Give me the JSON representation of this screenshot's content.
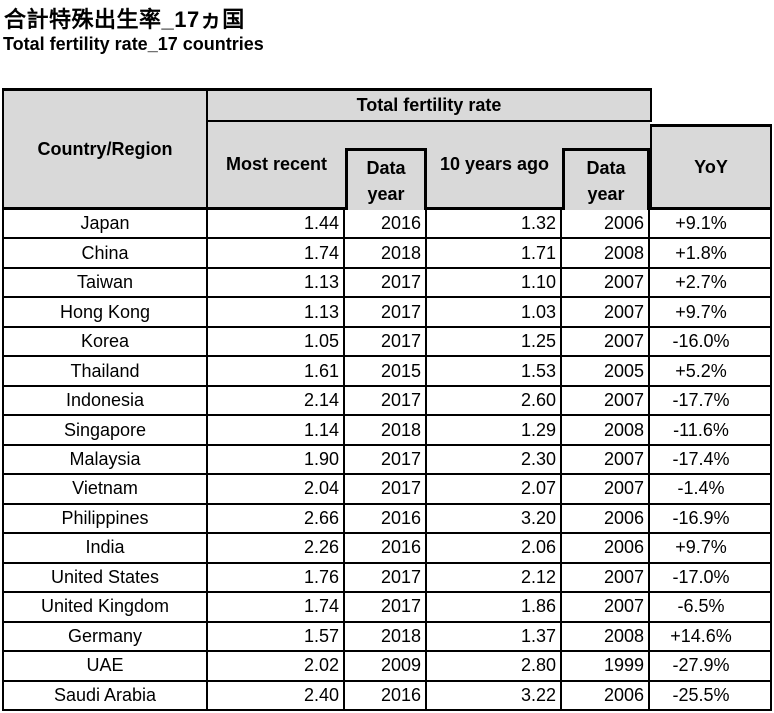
{
  "titles": {
    "japanese": "合計特殊出生率_17ヵ国",
    "english": "Total fertility rate_17 countries"
  },
  "table": {
    "header": {
      "country_region": "Country/Region",
      "group": "Total fertility rate",
      "most_recent": "Most recent",
      "data_year_l1": "Data",
      "data_year_l2": "year",
      "ten_years_ago": "10 years ago",
      "yoy": "YoY"
    },
    "rows": [
      {
        "country": "Japan",
        "most_recent": "1.44",
        "year1": "2016",
        "ten_years_ago": "1.32",
        "year2": "2006",
        "yoy": "+9.1%"
      },
      {
        "country": "China",
        "most_recent": "1.74",
        "year1": "2018",
        "ten_years_ago": "1.71",
        "year2": "2008",
        "yoy": "+1.8%"
      },
      {
        "country": "Taiwan",
        "most_recent": "1.13",
        "year1": "2017",
        "ten_years_ago": "1.10",
        "year2": "2007",
        "yoy": "+2.7%"
      },
      {
        "country": "Hong Kong",
        "most_recent": "1.13",
        "year1": "2017",
        "ten_years_ago": "1.03",
        "year2": "2007",
        "yoy": "+9.7%"
      },
      {
        "country": "Korea",
        "most_recent": "1.05",
        "year1": "2017",
        "ten_years_ago": "1.25",
        "year2": "2007",
        "yoy": "-16.0%"
      },
      {
        "country": "Thailand",
        "most_recent": "1.61",
        "year1": "2015",
        "ten_years_ago": "1.53",
        "year2": "2005",
        "yoy": "+5.2%"
      },
      {
        "country": "Indonesia",
        "most_recent": "2.14",
        "year1": "2017",
        "ten_years_ago": "2.60",
        "year2": "2007",
        "yoy": "-17.7%"
      },
      {
        "country": "Singapore",
        "most_recent": "1.14",
        "year1": "2018",
        "ten_years_ago": "1.29",
        "year2": "2008",
        "yoy": "-11.6%"
      },
      {
        "country": "Malaysia",
        "most_recent": "1.90",
        "year1": "2017",
        "ten_years_ago": "2.30",
        "year2": "2007",
        "yoy": "-17.4%"
      },
      {
        "country": "Vietnam",
        "most_recent": "2.04",
        "year1": "2017",
        "ten_years_ago": "2.07",
        "year2": "2007",
        "yoy": "-1.4%"
      },
      {
        "country": "Philippines",
        "most_recent": "2.66",
        "year1": "2016",
        "ten_years_ago": "3.20",
        "year2": "2006",
        "yoy": "-16.9%"
      },
      {
        "country": "India",
        "most_recent": "2.26",
        "year1": "2016",
        "ten_years_ago": "2.06",
        "year2": "2006",
        "yoy": "+9.7%"
      },
      {
        "country": "United States",
        "most_recent": "1.76",
        "year1": "2017",
        "ten_years_ago": "2.12",
        "year2": "2007",
        "yoy": "-17.0%"
      },
      {
        "country": "United Kingdom",
        "most_recent": "1.74",
        "year1": "2017",
        "ten_years_ago": "1.86",
        "year2": "2007",
        "yoy": "-6.5%"
      },
      {
        "country": "Germany",
        "most_recent": "1.57",
        "year1": "2018",
        "ten_years_ago": "1.37",
        "year2": "2008",
        "yoy": "+14.6%"
      },
      {
        "country": "UAE",
        "most_recent": "2.02",
        "year1": "2009",
        "ten_years_ago": "2.80",
        "year2": "1999",
        "yoy": "-27.9%"
      },
      {
        "country": "Saudi Arabia",
        "most_recent": "2.40",
        "year1": "2016",
        "ten_years_ago": "3.22",
        "year2": "2006",
        "yoy": "-25.5%"
      }
    ]
  },
  "chart_data": {
    "type": "table",
    "title": "Total fertility rate_17 countries",
    "title_ja": "合計特殊出生率_17ヵ国",
    "columns": [
      "Country/Region",
      "Total fertility rate: Most recent",
      "Data year",
      "Total fertility rate: 10 years ago",
      "Data year",
      "YoY"
    ],
    "rows": [
      [
        "Japan",
        1.44,
        2016,
        1.32,
        2006,
        "+9.1%"
      ],
      [
        "China",
        1.74,
        2018,
        1.71,
        2008,
        "+1.8%"
      ],
      [
        "Taiwan",
        1.13,
        2017,
        1.1,
        2007,
        "+2.7%"
      ],
      [
        "Hong Kong",
        1.13,
        2017,
        1.03,
        2007,
        "+9.7%"
      ],
      [
        "Korea",
        1.05,
        2017,
        1.25,
        2007,
        "-16.0%"
      ],
      [
        "Thailand",
        1.61,
        2015,
        1.53,
        2005,
        "+5.2%"
      ],
      [
        "Indonesia",
        2.14,
        2017,
        2.6,
        2007,
        "-17.7%"
      ],
      [
        "Singapore",
        1.14,
        2018,
        1.29,
        2008,
        "-11.6%"
      ],
      [
        "Malaysia",
        1.9,
        2017,
        2.3,
        2007,
        "-17.4%"
      ],
      [
        "Vietnam",
        2.04,
        2017,
        2.07,
        2007,
        "-1.4%"
      ],
      [
        "Philippines",
        2.66,
        2016,
        3.2,
        2006,
        "-16.9%"
      ],
      [
        "India",
        2.26,
        2016,
        2.06,
        2006,
        "+9.7%"
      ],
      [
        "United States",
        1.76,
        2017,
        2.12,
        2007,
        "-17.0%"
      ],
      [
        "United Kingdom",
        1.74,
        2017,
        1.86,
        2007,
        "-6.5%"
      ],
      [
        "Germany",
        1.57,
        2018,
        1.37,
        2008,
        "+14.6%"
      ],
      [
        "UAE",
        2.02,
        2009,
        2.8,
        1999,
        "-27.9%"
      ],
      [
        "Saudi Arabia",
        2.4,
        2016,
        3.22,
        2006,
        "-25.5%"
      ]
    ]
  },
  "colors": {
    "header_bg": "#d9d9d9",
    "border": "#000000",
    "text": "#000000",
    "background": "#ffffff"
  }
}
